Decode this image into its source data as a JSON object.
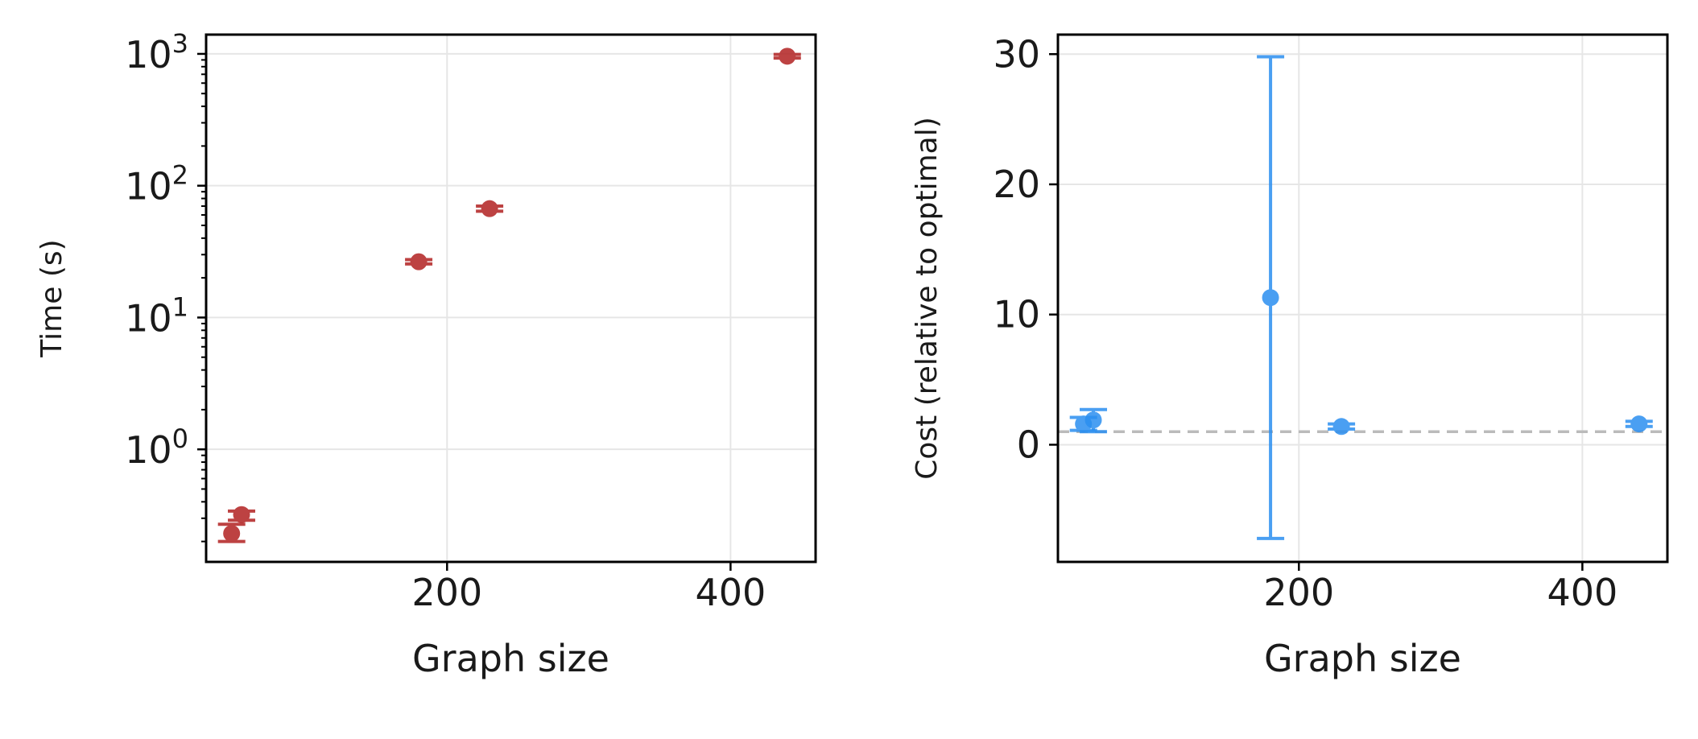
{
  "chart_data": [
    {
      "type": "scatter",
      "title": "",
      "xlabel": "Graph size",
      "ylabel": "Time (s)",
      "yscale": "log",
      "xlim": [
        30,
        460
      ],
      "ylim": [
        0.14,
        1400
      ],
      "xticks": [
        200,
        400
      ],
      "yticks": [
        {
          "value": 1,
          "base": "10",
          "exp": "0"
        },
        {
          "value": 10,
          "base": "10",
          "exp": "1"
        },
        {
          "value": 100,
          "base": "10",
          "exp": "2"
        },
        {
          "value": 1000,
          "base": "10",
          "exp": "3"
        }
      ],
      "grid": true,
      "color": "#b22222",
      "points": [
        {
          "x": 48,
          "y": 0.23,
          "yerr_low": 0.2,
          "yerr_high": 0.27
        },
        {
          "x": 55,
          "y": 0.32,
          "yerr_low": 0.29,
          "yerr_high": 0.34
        },
        {
          "x": 180,
          "y": 26.5,
          "yerr_low": 25.5,
          "yerr_high": 27.5
        },
        {
          "x": 230,
          "y": 67.0,
          "yerr_low": 64.0,
          "yerr_high": 70.0
        },
        {
          "x": 440,
          "y": 960,
          "yerr_low": 930,
          "yerr_high": 990
        }
      ]
    },
    {
      "type": "scatter",
      "title": "",
      "xlabel": "Graph size",
      "ylabel": "Cost (relative to optimal)",
      "yscale": "linear",
      "xlim": [
        30,
        460
      ],
      "ylim": [
        -9,
        31.5
      ],
      "xticks": [
        200,
        400
      ],
      "yticks": [
        {
          "value": 0,
          "label": "0"
        },
        {
          "value": 10,
          "label": "10"
        },
        {
          "value": 20,
          "label": "20"
        },
        {
          "value": 30,
          "label": "30"
        }
      ],
      "grid": true,
      "reference_line": {
        "y": 1,
        "style": "dashed",
        "color": "#bbbbbb"
      },
      "color": "#2b8ff0",
      "points": [
        {
          "x": 48,
          "y": 1.6,
          "yerr_low": 1.1,
          "yerr_high": 2.1
        },
        {
          "x": 55,
          "y": 1.9,
          "yerr_low": 1.0,
          "yerr_high": 2.7
        },
        {
          "x": 180,
          "y": 11.3,
          "yerr_low": -7.2,
          "yerr_high": 29.8
        },
        {
          "x": 230,
          "y": 1.4,
          "yerr_low": 1.2,
          "yerr_high": 1.6
        },
        {
          "x": 440,
          "y": 1.6,
          "yerr_low": 1.4,
          "yerr_high": 1.8
        }
      ]
    }
  ]
}
